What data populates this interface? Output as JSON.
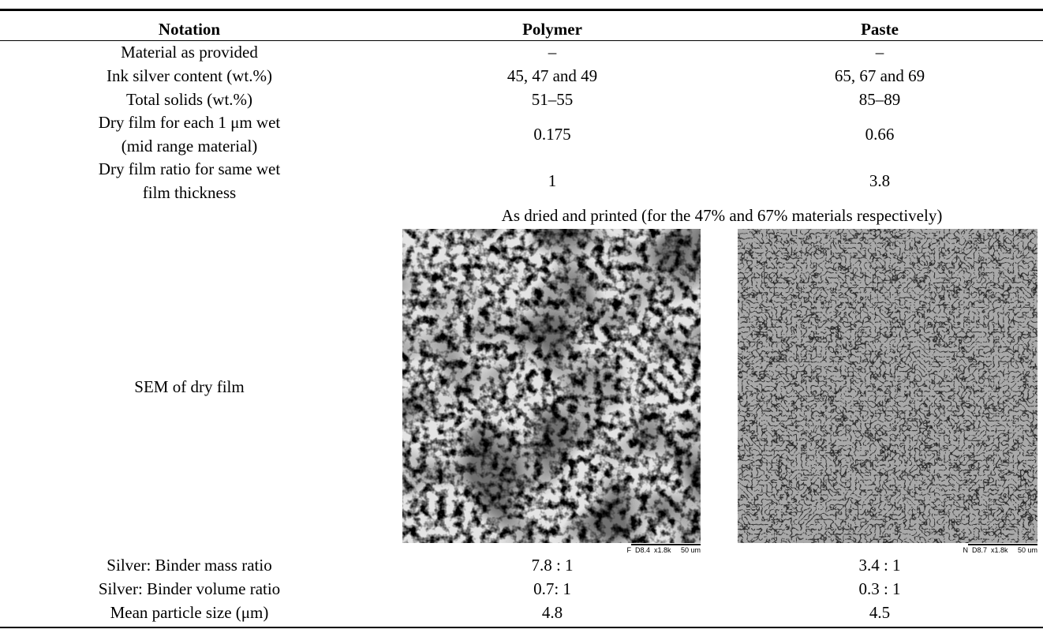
{
  "table": {
    "header": [
      "Notation",
      "Polymer",
      "Paste"
    ],
    "rows": [
      [
        "Material as provided",
        "–",
        "–"
      ],
      [
        "Ink silver content (wt.%)",
        "45, 47 and 49",
        "65, 67 and 69"
      ],
      [
        "Total solids (wt.%)",
        "51–55",
        "85–89"
      ],
      [
        [
          "Dry film for each 1 μm wet",
          "(mid range material)"
        ],
        "0.175",
        "0.66"
      ],
      [
        [
          "Dry film ratio for same wet",
          "film thickness"
        ],
        "1",
        "3.8"
      ]
    ],
    "sem": {
      "caption": "As dried and printed (for the 47% and 67% materials respectively)",
      "label": "SEM of dry film",
      "scale_labels": [
        "F  D8.4  x1.8k     50 um",
        "N  D8.7  x1.8k     50 um"
      ]
    },
    "rows_after": [
      [
        "Silver: Binder mass ratio",
        "7.8 : 1",
        "3.4 : 1"
      ],
      [
        "Silver: Binder volume ratio",
        "0.7: 1",
        "0.3 : 1"
      ],
      [
        "Mean particle size (μm)",
        "4.8",
        "4.5"
      ]
    ]
  }
}
